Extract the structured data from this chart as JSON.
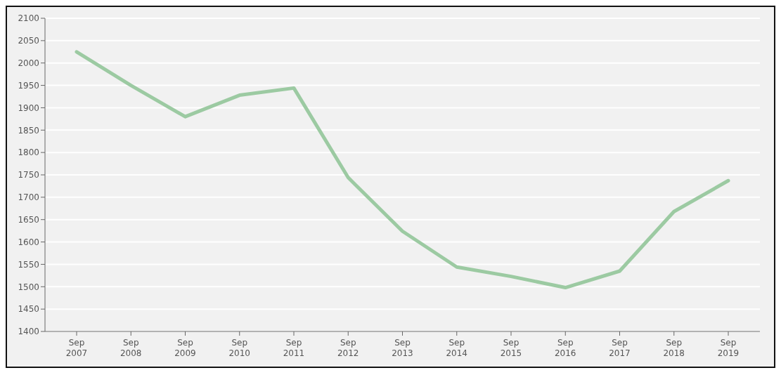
{
  "chart_data": {
    "type": "line",
    "categories": [
      "Sep 2007",
      "Sep 2008",
      "Sep 2009",
      "Sep 2010",
      "Sep 2011",
      "Sep 2012",
      "Sep 2013",
      "Sep 2014",
      "Sep 2015",
      "Sep 2016",
      "Sep 2017",
      "Sep 2018",
      "Sep 2019"
    ],
    "series": [
      {
        "color": "#9ccaa2",
        "values": [
          2025,
          1950,
          1880,
          1928,
          1944,
          1744,
          1624,
          1544,
          1523,
          1498,
          1535,
          1668,
          1737
        ]
      }
    ],
    "ylim": [
      1400,
      2100
    ],
    "yticks": [
      1400,
      1450,
      1500,
      1550,
      1600,
      1650,
      1700,
      1750,
      1800,
      1850,
      1900,
      1950,
      2000,
      2050,
      2100
    ],
    "grid": "y",
    "legend": false,
    "marker": "none",
    "line_style": "solid"
  }
}
